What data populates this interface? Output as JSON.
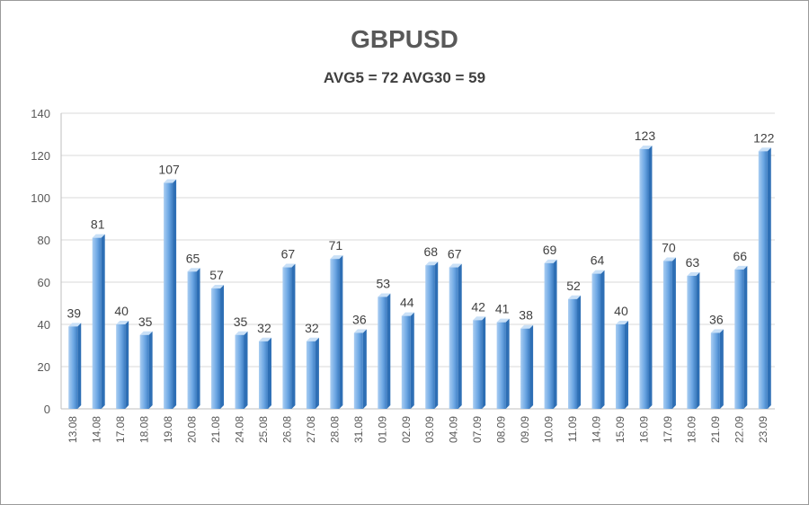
{
  "chart_data": {
    "type": "bar",
    "title": "GBPUSD",
    "subtitle": "AVG5 = 72 AVG30 = 59",
    "categories": [
      "13.08",
      "14.08",
      "17.08",
      "18.08",
      "19.08",
      "20.08",
      "21.08",
      "24.08",
      "25.08",
      "26.08",
      "27.08",
      "28.08",
      "31.08",
      "01.09",
      "02.09",
      "03.09",
      "04.09",
      "07.09",
      "08.09",
      "09.09",
      "10.09",
      "11.09",
      "14.09",
      "15.09",
      "16.09",
      "17.09",
      "18.09",
      "21.09",
      "22.09",
      "23.09"
    ],
    "values": [
      39,
      81,
      40,
      35,
      107,
      65,
      57,
      35,
      32,
      67,
      32,
      71,
      36,
      53,
      44,
      68,
      67,
      42,
      41,
      38,
      69,
      52,
      64,
      40,
      123,
      70,
      63,
      36,
      66,
      122
    ],
    "ylim": [
      0,
      140
    ],
    "yticks": [
      0,
      20,
      40,
      60,
      80,
      100,
      120,
      140
    ],
    "grid": true,
    "legend": "none",
    "colors": {
      "bar_light": "#a9cdf2",
      "bar_mid": "#6ea8e4",
      "bar_dark": "#2e6fb5",
      "bar_top": "#c9e0f7",
      "grid": "#d9d9d9",
      "axis": "#bfbfbf"
    }
  }
}
